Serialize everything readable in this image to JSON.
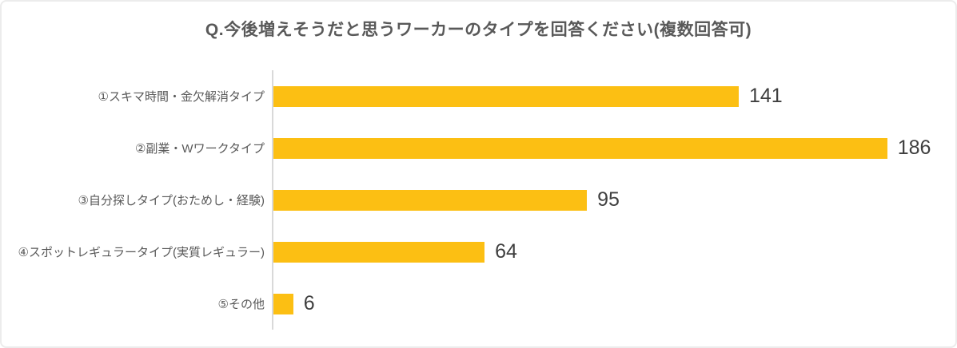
{
  "title": "Q.今後増えそうだと思うワーカーのタイプを回答ください(複数回答可)",
  "chart_data": {
    "type": "bar",
    "orientation": "horizontal",
    "title": "Q.今後増えそうだと思うワーカーのタイプを回答ください(複数回答可)",
    "categories": [
      "①スキマ時間・金欠解消タイプ",
      "②副業・Wワークタイプ",
      "③自分探しタイプ(おためし・経験)",
      "④スポットレギュラータイプ(実質レギュラー)",
      "⑤その他"
    ],
    "values": [
      141,
      186,
      95,
      64,
      6
    ],
    "data_labels": [
      "141",
      "186",
      "95",
      "64",
      "6"
    ],
    "xlabel": "",
    "ylabel": "",
    "xlim": [
      0,
      186
    ],
    "grid": false,
    "legend": false
  },
  "colors": {
    "bar": "#fcbf13",
    "axis_line": "#d9d9d9",
    "title_text": "#595959",
    "category_text": "#595959",
    "value_text": "#3f3f3f",
    "background": "#ffffff",
    "frame_border": "#ececec"
  }
}
